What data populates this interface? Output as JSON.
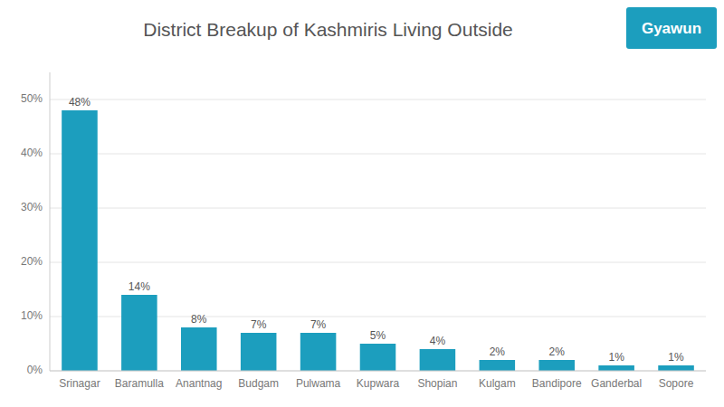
{
  "chart_data": {
    "type": "bar",
    "title": "District Breakup of Kashmiris Living Outside",
    "categories": [
      "Srinagar",
      "Baramulla",
      "Anantnag",
      "Budgam",
      "Pulwama",
      "Kupwara",
      "Shopian",
      "Kulgam",
      "Bandipore",
      "Ganderbal",
      "Sopore"
    ],
    "values": [
      48,
      14,
      8,
      7,
      7,
      5,
      4,
      2,
      2,
      1,
      1
    ],
    "value_labels": [
      "48%",
      "14%",
      "8%",
      "7%",
      "7%",
      "5%",
      "4%",
      "2%",
      "2%",
      "1%",
      "1%"
    ],
    "data_labels": true,
    "color": "#1c9ebe",
    "ylim": [
      0,
      55
    ],
    "yticks": [
      {
        "value": 0,
        "label": "0%"
      },
      {
        "value": 10,
        "label": "10%"
      },
      {
        "value": 20,
        "label": "20%"
      },
      {
        "value": 30,
        "label": "30%"
      },
      {
        "value": 40,
        "label": "40%"
      },
      {
        "value": 50,
        "label": "50%"
      }
    ],
    "grid": true,
    "annotations": [
      "Gyawun"
    ]
  }
}
